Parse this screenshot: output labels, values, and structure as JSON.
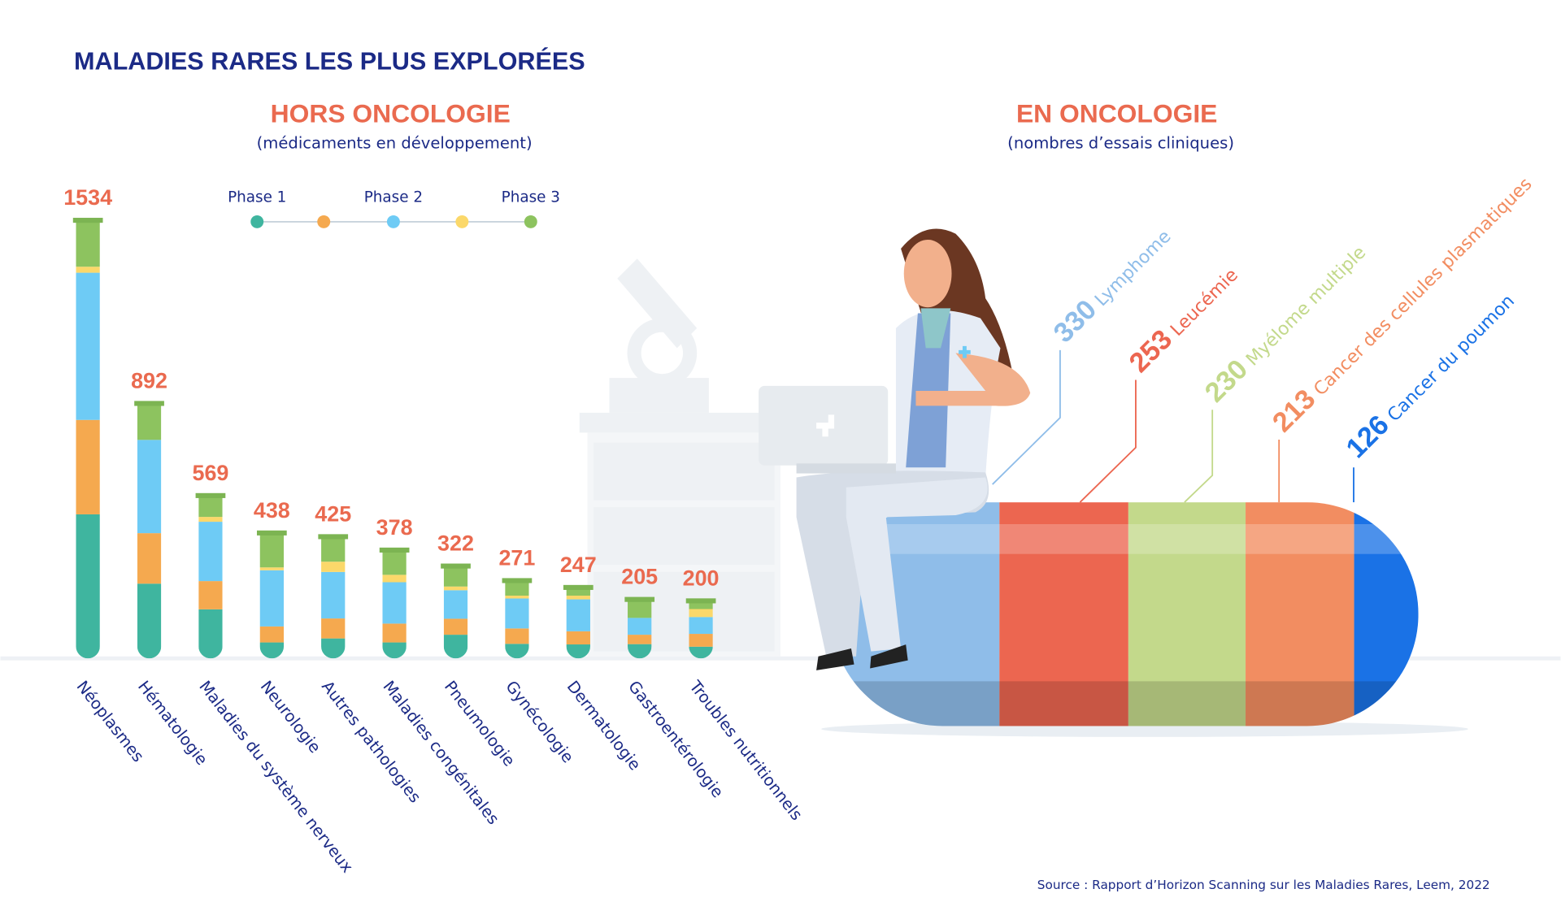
{
  "title": "MALADIES RARES LES PLUS EXPLORÉES",
  "source": "Source : Rapport d’Horizon Scanning sur les Maladies Rares, Leem, 2022",
  "chart_data": [
    {
      "type": "stacked_bar",
      "title": "HORS ONCOLOGIE",
      "subtitle": "(médicaments en développement)",
      "categories": [
        "Néoplasmes",
        "Hématologie",
        "Maladies du système nerveux",
        "Neurologie",
        "Autres pathologies",
        "Maladies congénitales",
        "Pneumologie",
        "Gynécologie",
        "Dermatologie",
        "Gastroentérologie",
        "Troubles nutritionnels"
      ],
      "totals": [
        1534,
        892,
        569,
        438,
        425,
        378,
        322,
        271,
        247,
        205,
        200
      ],
      "series": [
        {
          "name": "Phase 1",
          "color": "#3fb59f",
          "values": [
            505,
            262,
            172,
            56,
            70,
            56,
            83,
            51,
            49,
            50,
            41
          ]
        },
        {
          "color": "#f5a94f",
          "values": [
            331,
            177,
            99,
            56,
            70,
            66,
            56,
            54,
            46,
            33,
            45
          ]
        },
        {
          "name": "Phase 2",
          "color": "#6ecbf5",
          "values": [
            516,
            327,
            208,
            197,
            163,
            145,
            100,
            105,
            112,
            59,
            59
          ]
        },
        {
          "color": "#fbd86a",
          "values": [
            21,
            0,
            17,
            10,
            36,
            26,
            13,
            10,
            13,
            0,
            28
          ]
        },
        {
          "name": "Phase 3",
          "color": "#8dc35f",
          "values": [
            161,
            126,
            73,
            119,
            86,
            85,
            70,
            51,
            27,
            63,
            27
          ]
        }
      ]
    },
    {
      "type": "pill",
      "title": "EN ONCOLOGIE",
      "subtitle": "(nombres d’essais cliniques)",
      "categories": [
        "Lymphome",
        "Leucémie",
        "Myélome multiple",
        "Cancer des cellules plasmatiques",
        "Cancer du poumon"
      ],
      "values": [
        330,
        253,
        230,
        213,
        126
      ],
      "colors": [
        "#8fbde9",
        "#ec6650",
        "#c3d98b",
        "#f28d61",
        "#1a72e6"
      ]
    }
  ]
}
